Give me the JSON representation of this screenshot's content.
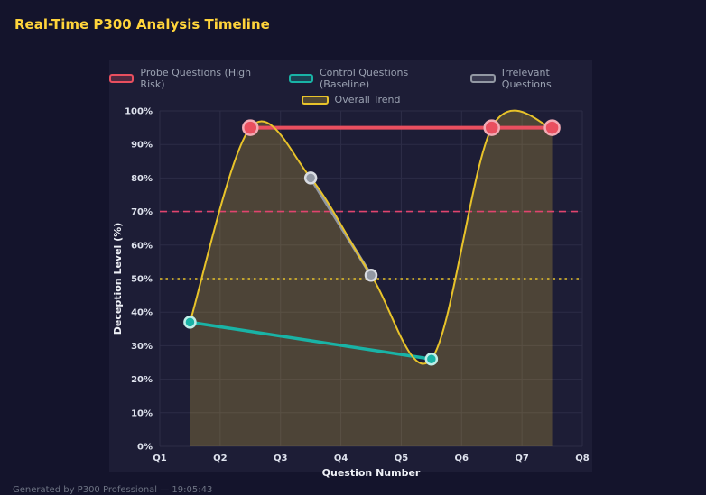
{
  "page": {
    "title": "Real-Time P300 Analysis Timeline",
    "footer": "Generated by P300 Professional — 19:05:43"
  },
  "colors": {
    "background": "#14142c",
    "panel": "#1d1d36",
    "grid": "#2d2d47",
    "title_text": "#ffd43b",
    "axis_text": "#eef0f6",
    "legend_text": "#9aa1b1"
  },
  "chart_data": {
    "type": "line",
    "title": "Real-Time P300 Analysis Timeline",
    "xlabel": "Question Number",
    "ylabel": "Deception Level (%)",
    "x_ticks": [
      "Q1",
      "Q2",
      "Q3",
      "Q4",
      "Q5",
      "Q6",
      "Q7",
      "Q8"
    ],
    "x_range": [
      1,
      8
    ],
    "y_ticks": [
      "0%",
      "10%",
      "20%",
      "30%",
      "40%",
      "50%",
      "60%",
      "70%",
      "80%",
      "90%",
      "100%"
    ],
    "ylim": [
      0,
      100
    ],
    "grid": true,
    "legend_position": "top",
    "series": [
      {
        "name": "Probe Questions (High Risk)",
        "color": "#e94f5f",
        "marker_stroke": "#f2aab4",
        "points": [
          [
            2.5,
            95
          ],
          [
            6.5,
            95
          ],
          [
            7.5,
            95
          ]
        ],
        "marker_radius": 8,
        "line_width": 4,
        "smooth": false
      },
      {
        "name": "Control Questions (Baseline)",
        "color": "#19b3a6",
        "marker_stroke": "#bfeee8",
        "points": [
          [
            1.5,
            37
          ],
          [
            5.5,
            26
          ]
        ],
        "marker_radius": 6,
        "line_width": 3.5,
        "smooth": false
      },
      {
        "name": "Irrelevant Questions",
        "color": "#9298a3",
        "marker_stroke": "#d9dce2",
        "points": [
          [
            3.5,
            80
          ],
          [
            4.5,
            51
          ]
        ],
        "marker_radius": 6,
        "line_width": 3.5,
        "smooth": false
      },
      {
        "name": "Overall Trend",
        "color": "#e8c32a",
        "marker_stroke": "#e8c32a",
        "points": [
          [
            1.5,
            37
          ],
          [
            2.5,
            95
          ],
          [
            3.5,
            80
          ],
          [
            4.5,
            51
          ],
          [
            5.5,
            26
          ],
          [
            6.5,
            95
          ],
          [
            7.5,
            95
          ]
        ],
        "marker_radius": 0,
        "line_width": 2,
        "smooth": true,
        "area_fill": "rgba(222, 189, 60, 0.25)"
      }
    ],
    "reference_lines": [
      {
        "y": 70,
        "color": "#e0446e",
        "dash": "8 5"
      },
      {
        "y": 50,
        "color": "#e6c229",
        "dash": "2.5 4"
      }
    ]
  }
}
